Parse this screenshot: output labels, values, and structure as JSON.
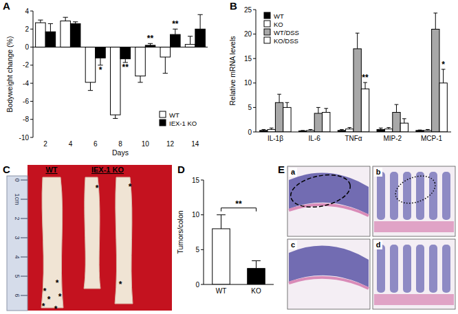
{
  "chart_data": [
    {
      "type": "bar",
      "title": "A",
      "x_label": "Days",
      "y_label": "Bodyweight change (%)",
      "categories": [
        2,
        4,
        6,
        8,
        10,
        12,
        14
      ],
      "series": [
        {
          "name": "WT",
          "color": "#ffffff",
          "values": [
            2.7,
            2.9,
            -3.9,
            -7.5,
            -3.2,
            -1.1,
            0.3
          ],
          "errors": [
            0.3,
            0.4,
            0.9,
            0.4,
            0.7,
            1.8,
            0.9
          ]
        },
        {
          "name": "IEX-1 KO",
          "color": "#000000",
          "values": [
            1.7,
            2.6,
            -1.2,
            -1.3,
            0.2,
            1.4,
            2.0
          ],
          "errors": [
            0.9,
            0.2,
            0.8,
            0.4,
            0.2,
            0.6,
            1.6
          ]
        }
      ],
      "ylim": [
        -10,
        4
      ],
      "yticks": [
        -10,
        -8,
        -6,
        -4,
        -2,
        0,
        2,
        4
      ],
      "legend": "lower right",
      "annotations": [
        {
          "text": "*",
          "x": 6,
          "series": "IEX-1 KO"
        },
        {
          "text": "**",
          "x": 8,
          "series": "IEX-1 KO"
        },
        {
          "text": "**",
          "x": 10,
          "series": "IEX-1 KO"
        },
        {
          "text": "**",
          "x": 12,
          "series": "IEX-1 KO"
        }
      ]
    },
    {
      "type": "bar",
      "title": "B",
      "y_label": "Relative mRNA levels",
      "categories": [
        "IL-1β",
        "IL-6",
        "TNFα",
        "MIP-2",
        "MCP-1"
      ],
      "series": [
        {
          "name": "WT",
          "color": "#000000",
          "values": [
            0.3,
            0.2,
            0.3,
            0.5,
            0.3
          ],
          "errors": [
            0.2,
            0.1,
            0.2,
            0.3,
            0.1
          ]
        },
        {
          "name": "KO",
          "color": "#ffffff",
          "values": [
            0.5,
            0.3,
            0.6,
            0.6,
            0.3
          ],
          "errors": [
            0.3,
            0.2,
            0.3,
            0.3,
            0.2
          ]
        },
        {
          "name": "WT/DSS",
          "color": "#a8a8a8",
          "values": [
            6.0,
            3.8,
            17.0,
            4.0,
            21.0
          ],
          "errors": [
            1.7,
            1.2,
            3.2,
            1.6,
            3.3
          ]
        },
        {
          "name": "KO/DSS",
          "color": "#ffffff",
          "values": [
            5.0,
            4.0,
            8.8,
            1.8,
            10.0
          ],
          "errors": [
            1.0,
            0.8,
            1.3,
            0.9,
            2.8
          ]
        }
      ],
      "ylim": [
        0,
        25
      ],
      "yticks": [
        0,
        5,
        10,
        15,
        20,
        25
      ],
      "legend": "upper left",
      "annotations": [
        {
          "text": "**",
          "x": "TNFα",
          "series": "KO/DSS"
        },
        {
          "text": "*",
          "x": "MCP-1",
          "series": "KO/DSS"
        }
      ]
    },
    {
      "type": "bar",
      "title": "D",
      "y_label": "Tumors/colon",
      "categories": [
        "WT",
        "KO"
      ],
      "values": [
        8,
        2.3
      ],
      "errors": [
        2,
        1.1
      ],
      "colors": [
        "#ffffff",
        "#000000"
      ],
      "ylim": [
        0,
        15
      ],
      "yticks": [
        0,
        5,
        10,
        15
      ],
      "annotations": [
        {
          "text": "**",
          "from": "WT",
          "to": "KO"
        }
      ]
    }
  ],
  "figure": {
    "panel_c": {
      "label": "C",
      "groups": [
        {
          "label": "WT",
          "colons": 1
        },
        {
          "label": "IEX-1 KO",
          "colons": 2
        }
      ],
      "tumors_per_colon": [
        6,
        1,
        2
      ],
      "mark_text": "*",
      "ruler_labels": [
        "0",
        "1cm",
        "2",
        "3",
        "4",
        "5",
        "6"
      ]
    },
    "panel_e": {
      "label": "E",
      "images": [
        "a",
        "b",
        "c",
        "d"
      ]
    }
  }
}
